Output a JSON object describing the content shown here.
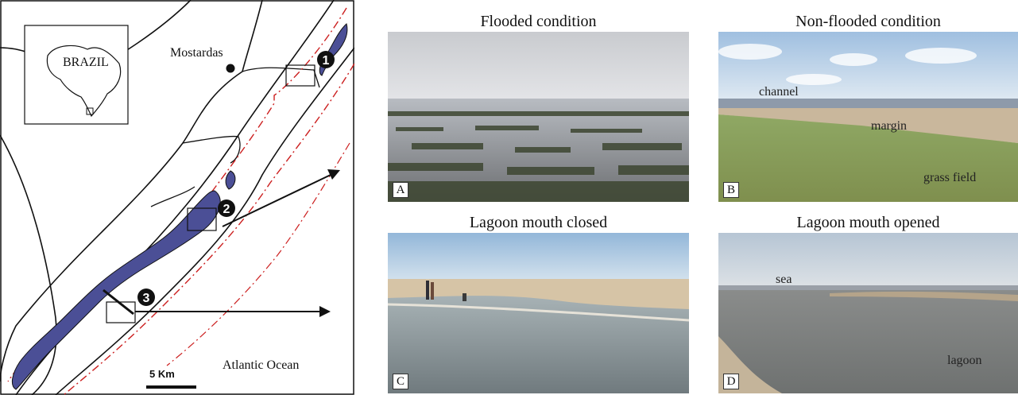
{
  "map": {
    "country_label": "BRAZIL",
    "town_label": "Mostardas",
    "ocean_label": "Atlantic Ocean",
    "scale_label": "5 Km",
    "sites": [
      "1",
      "2",
      "3"
    ],
    "colors": {
      "lagoon": "#4b4f96",
      "boundary": "#cc1f1f",
      "line": "#111111"
    }
  },
  "panels": [
    {
      "title": "Flooded condition",
      "tag": "A",
      "labels": []
    },
    {
      "title": "Non-flooded condition",
      "tag": "B",
      "labels": [
        "channel",
        "margin",
        "grass field"
      ]
    },
    {
      "title": "Lagoon mouth closed",
      "tag": "C",
      "labels": []
    },
    {
      "title": "Lagoon mouth opened",
      "tag": "D",
      "labels": [
        "sea",
        "lagoon"
      ]
    }
  ]
}
